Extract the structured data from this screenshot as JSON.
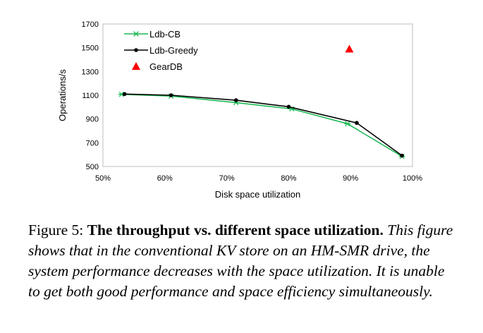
{
  "chart_data": {
    "type": "line",
    "title": "",
    "xlabel": "Disk space utilization",
    "ylabel": "Operations/s",
    "xlim": [
      50,
      100
    ],
    "ylim": [
      500,
      1700
    ],
    "xticks": [
      "50%",
      "60%",
      "70%",
      "80%",
      "90%",
      "100%"
    ],
    "yticks": [
      "500",
      "700",
      "900",
      "1100",
      "1300",
      "1500",
      "1700"
    ],
    "legend_position": "top-left",
    "series": [
      {
        "name": "Ldb-CB",
        "marker": "star",
        "color": "#1DB954",
        "x": [
          53,
          61,
          71.5,
          80.5,
          89.5,
          98.3
        ],
        "y": [
          1108,
          1093,
          1038,
          985,
          860,
          585
        ]
      },
      {
        "name": "Ldb-Greedy",
        "marker": "circle",
        "color": "#000000",
        "x": [
          53.5,
          61,
          71.5,
          80,
          91,
          98.3
        ],
        "y": [
          1110,
          1100,
          1058,
          1003,
          867,
          592
        ]
      },
      {
        "name": "GearDB",
        "marker": "triangle",
        "color": "#FF0000",
        "x": [
          89.8
        ],
        "y": [
          1490
        ]
      }
    ]
  },
  "caption": {
    "label": "Figure 5: ",
    "title": "The throughput vs. different space utilization.",
    "body": " This figure shows that in the conventional KV store on an HM-SMR drive, the system performance decreases with the space utilization. It is unable to get both good performance and space efficiency simultaneously."
  }
}
